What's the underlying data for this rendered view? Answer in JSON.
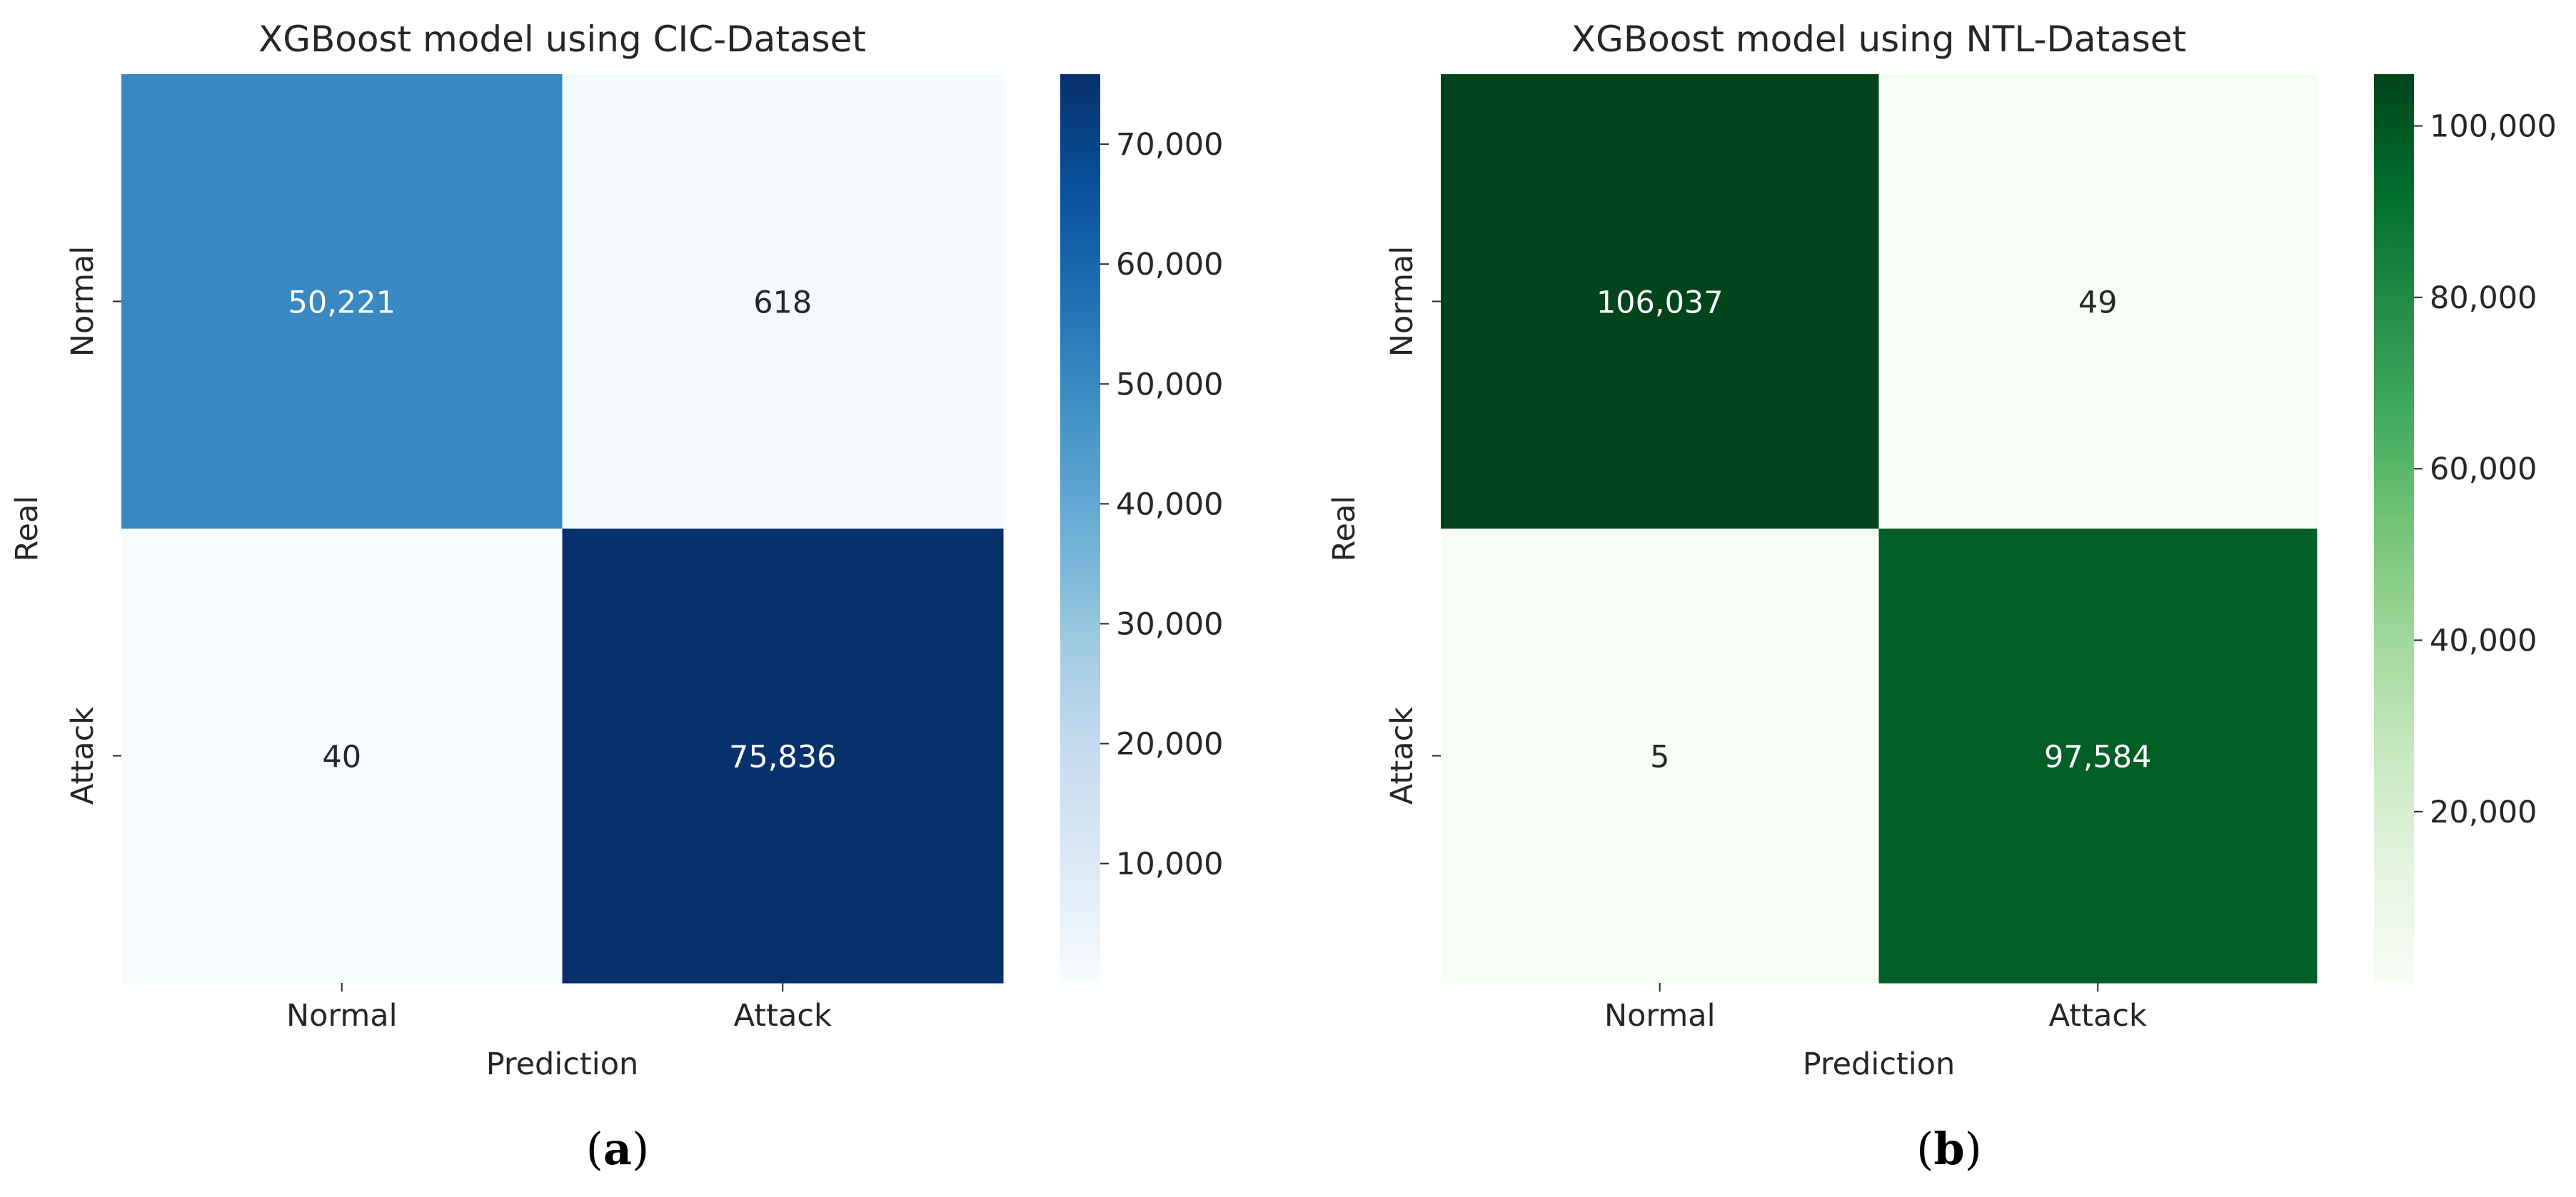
{
  "panels": [
    {
      "prefix": "(",
      "letter": "a",
      "suffix": ")"
    },
    {
      "prefix": "(",
      "letter": "b",
      "suffix": ")"
    }
  ],
  "chart_data": [
    {
      "type": "heatmap",
      "title": "XGBoost model using CIC-Dataset",
      "xlabel": "Prediction",
      "ylabel": "Real",
      "x_categories": [
        "Normal",
        "Attack"
      ],
      "y_categories": [
        "Normal",
        "Attack"
      ],
      "matrix": [
        [
          50221,
          618
        ],
        [
          40,
          75836
        ]
      ],
      "cell_labels": [
        [
          "50,221",
          "618"
        ],
        [
          "40",
          "75,836"
        ]
      ],
      "colormap": "Blues",
      "colorbar": {
        "min": 40,
        "max": 75836,
        "ticks": [
          10000,
          20000,
          30000,
          40000,
          50000,
          60000,
          70000
        ],
        "tick_labels": [
          "10,000",
          "20,000",
          "30,000",
          "40,000",
          "50,000",
          "60,000",
          "70,000"
        ]
      },
      "colors": {
        "low": "#f7fbff",
        "high": "#08306b",
        "label_dark": "#262626",
        "label_light": "#ffffff"
      }
    },
    {
      "type": "heatmap",
      "title": "XGBoost model using NTL-Dataset",
      "xlabel": "Prediction",
      "ylabel": "Real",
      "x_categories": [
        "Normal",
        "Attack"
      ],
      "y_categories": [
        "Normal",
        "Attack"
      ],
      "matrix": [
        [
          106037,
          49
        ],
        [
          5,
          97584
        ]
      ],
      "cell_labels": [
        [
          "106,037",
          "49"
        ],
        [
          "5",
          "97,584"
        ]
      ],
      "colormap": "Greens",
      "colorbar": {
        "min": 5,
        "max": 106037,
        "ticks": [
          20000,
          40000,
          60000,
          80000,
          100000
        ],
        "tick_labels": [
          "20,000",
          "40,000",
          "60,000",
          "80,000",
          "100,000"
        ]
      },
      "colors": {
        "low": "#f7fcf5",
        "high": "#00441b",
        "label_dark": "#262626",
        "label_light": "#ffffff"
      }
    }
  ]
}
